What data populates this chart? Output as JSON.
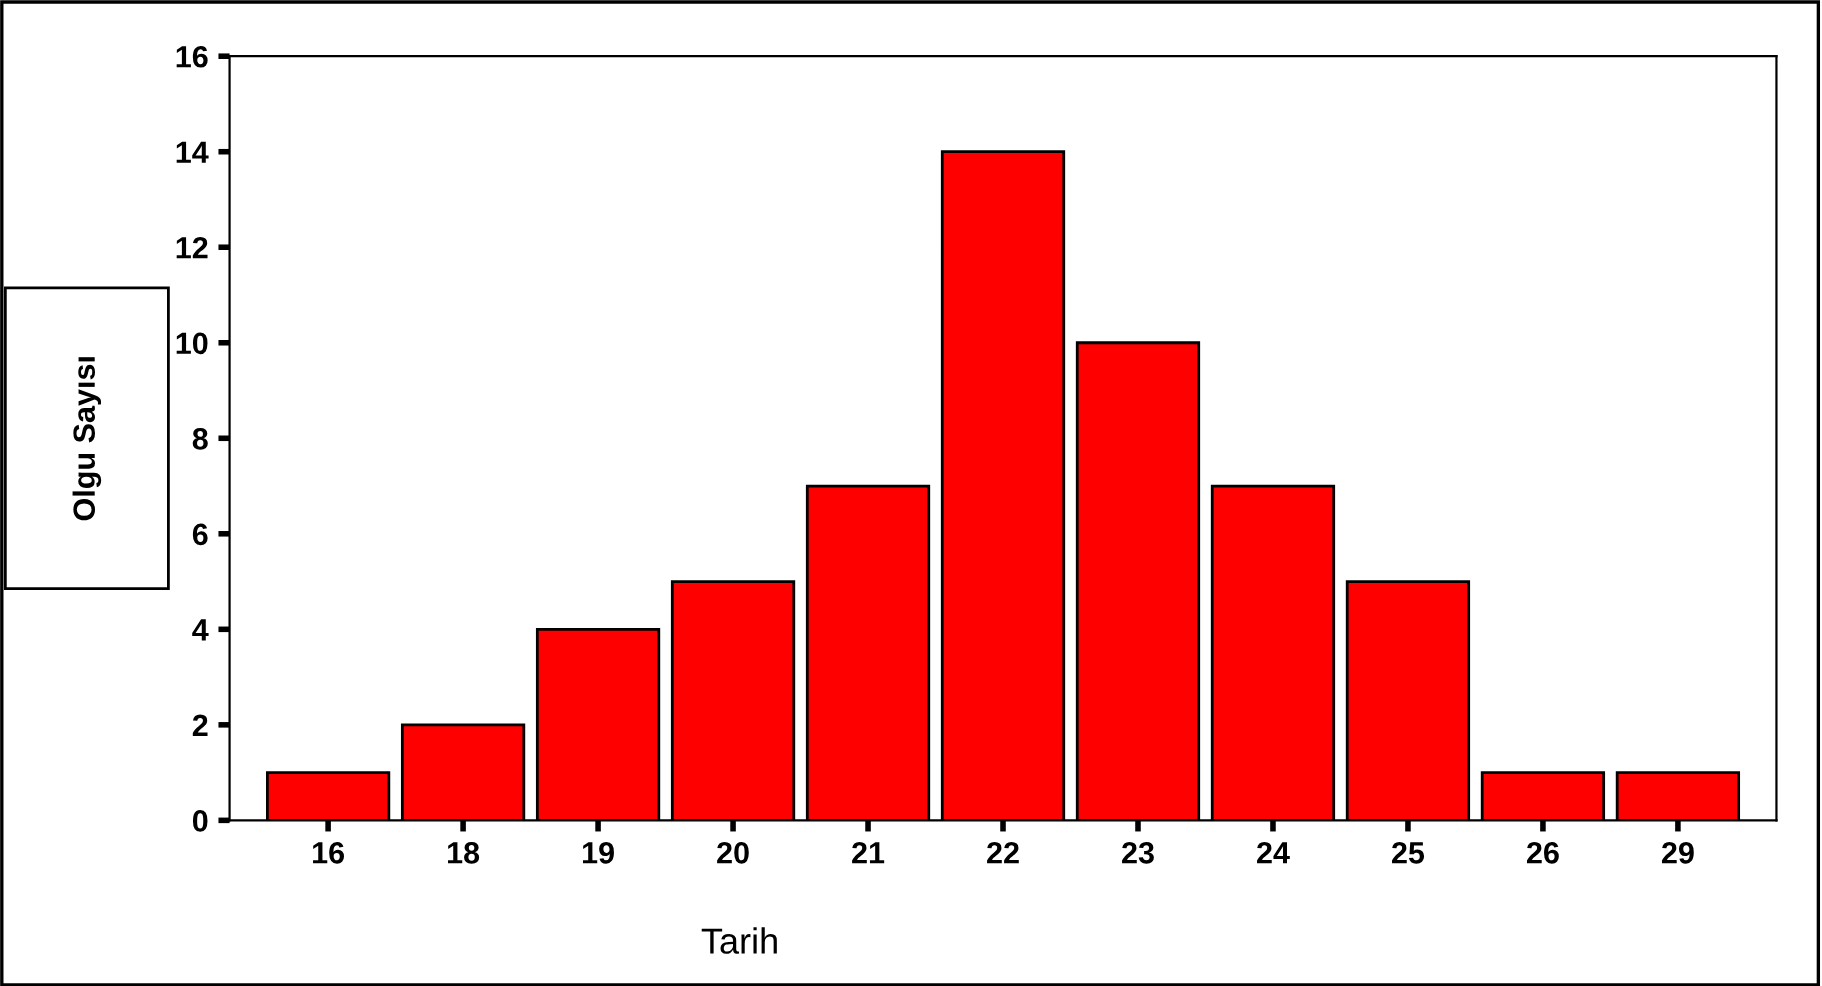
{
  "chart_data": {
    "type": "bar",
    "xlabel": "Tarih",
    "ylabel": "Olgu Sayısı",
    "categories": [
      "16",
      "18",
      "19",
      "20",
      "21",
      "22",
      "23",
      "24",
      "25",
      "26",
      "29"
    ],
    "values": [
      1,
      2,
      4,
      5,
      7,
      14,
      10,
      7,
      5,
      1,
      1
    ],
    "color": "#ff0000",
    "ylim": [
      0,
      16
    ],
    "yticks": [
      0,
      2,
      4,
      6,
      8,
      10,
      12,
      14,
      16
    ],
    "grid": false,
    "legend": false
  }
}
